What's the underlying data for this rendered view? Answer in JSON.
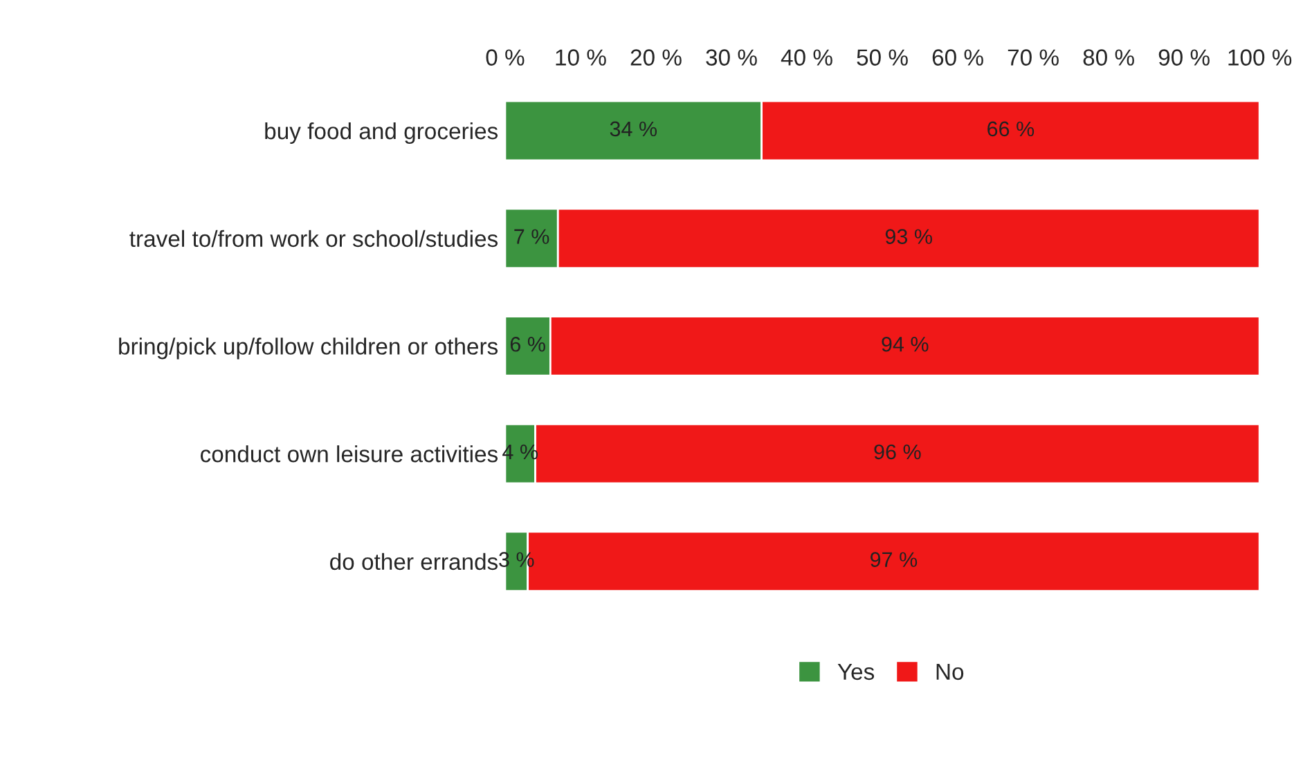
{
  "chart_data": {
    "type": "bar",
    "orientation": "horizontal",
    "stacked": true,
    "categories": [
      "buy food and groceries",
      "travel to/from work or school/studies",
      "bring/pick up/follow children or others",
      "conduct own leisure activities",
      "do other errands"
    ],
    "series": [
      {
        "name": "Yes",
        "color": "#3c9440",
        "values": [
          34,
          7,
          6,
          4,
          3
        ],
        "value_labels": [
          "34 %",
          "7 %",
          "6 %",
          "4 %",
          "3 %"
        ]
      },
      {
        "name": "No",
        "color": "#f01818",
        "values": [
          66,
          93,
          94,
          96,
          97
        ],
        "value_labels": [
          "66 %",
          "93 %",
          "94 %",
          "96 %",
          "97 %"
        ]
      }
    ],
    "xlim": [
      0,
      100
    ],
    "xticks": [
      {
        "value": 0,
        "label": "0 %"
      },
      {
        "value": 10,
        "label": "10 %"
      },
      {
        "value": 20,
        "label": "20 %"
      },
      {
        "value": 30,
        "label": "30 %"
      },
      {
        "value": 40,
        "label": "40 %"
      },
      {
        "value": 50,
        "label": "50 %"
      },
      {
        "value": 60,
        "label": "60 %"
      },
      {
        "value": 70,
        "label": "70 %"
      },
      {
        "value": 80,
        "label": "80 %"
      },
      {
        "value": 90,
        "label": "90 %"
      },
      {
        "value": 100,
        "label": "100 %"
      }
    ],
    "legend": "bottom",
    "grid": false
  }
}
